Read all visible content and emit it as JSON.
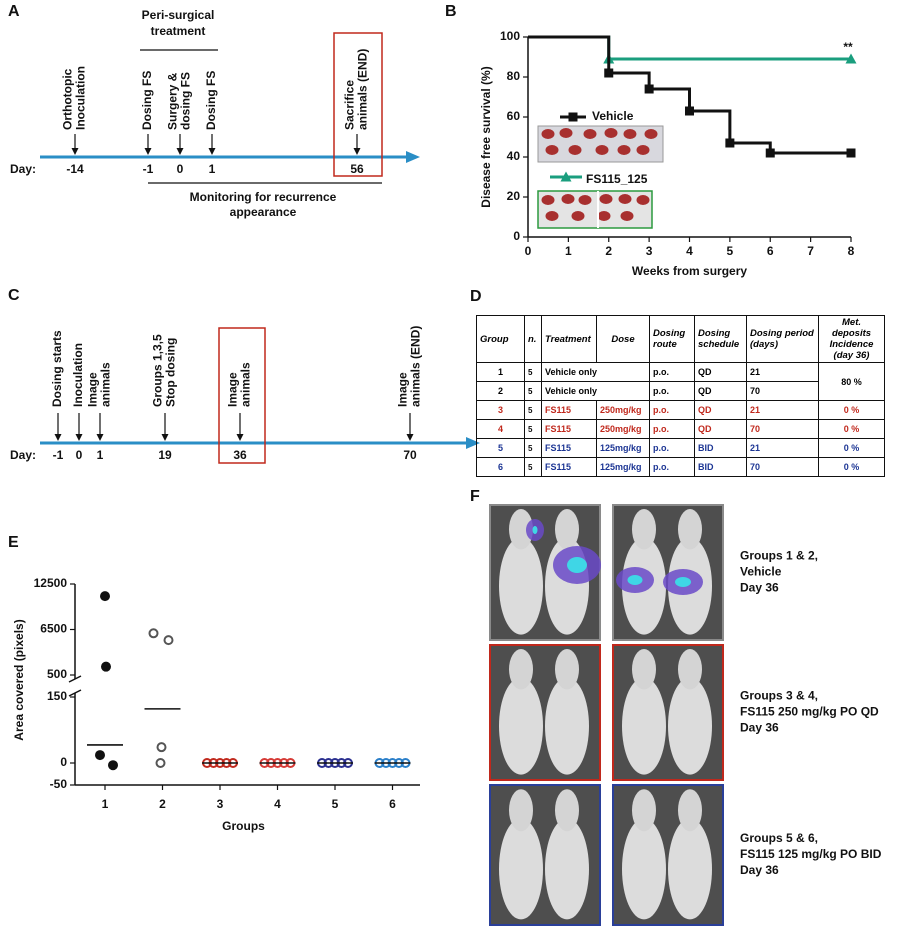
{
  "panel_a": {
    "label": "A",
    "header": [
      "Peri-surgical",
      "treatment"
    ],
    "day_label": "Day:",
    "events": [
      {
        "label": [
          "Orthotopic",
          "Inoculation"
        ],
        "day": "-14"
      },
      {
        "label": [
          "Dosing FS"
        ],
        "day": "-1"
      },
      {
        "label": [
          "Surgery &",
          "dosing FS"
        ],
        "day": "0"
      },
      {
        "label": [
          "Dosing FS"
        ],
        "day": "1"
      },
      {
        "label": [
          "Sacrifice",
          "animals (END)"
        ],
        "day": "56"
      }
    ],
    "footer": [
      "Monitoring for recurrence",
      "appearance"
    ]
  },
  "panel_c": {
    "label": "C",
    "day_label": "Day:",
    "events": [
      {
        "label": [
          "Dosing starts"
        ],
        "day": "-1"
      },
      {
        "label": [
          "Inoculation"
        ],
        "day": "0"
      },
      {
        "label": [
          "Image",
          "animals"
        ],
        "day": "1"
      },
      {
        "label": [
          "Groups 1,3,5",
          "Stop dosing"
        ],
        "day": "19"
      },
      {
        "label": [
          "Image",
          "animals"
        ],
        "day": "36"
      },
      {
        "label": [
          "Image",
          "animals (END)"
        ],
        "day": "70"
      }
    ]
  },
  "chart_data": [
    {
      "label": "B",
      "type": "line",
      "step": true,
      "x_label": "Weeks from surgery",
      "y_label": "Disease free survival (%)",
      "xlim": [
        0,
        8
      ],
      "xticks": [
        0,
        1,
        2,
        3,
        4,
        5,
        6,
        7,
        8
      ],
      "ylim": [
        0,
        100
      ],
      "yticks": [
        0,
        20,
        40,
        60,
        80,
        100
      ],
      "annotations": [
        "**"
      ],
      "series": [
        {
          "name": "Vehicle",
          "color": "#111111",
          "marker": "square",
          "x": [
            0,
            2,
            3,
            4,
            5,
            6,
            8
          ],
          "values": [
            100,
            82,
            74,
            63,
            47,
            42,
            42
          ]
        },
        {
          "name": "FS115_125",
          "color": "#1a9e7e",
          "marker": "triangle",
          "x": [
            0,
            2,
            8
          ],
          "values": [
            100,
            89,
            89
          ]
        }
      ]
    },
    {
      "label": "E",
      "type": "scatter",
      "x_label": "Groups",
      "y_label": "Area covered (pixels)",
      "categories": [
        "1",
        "2",
        "3",
        "4",
        "5",
        "6"
      ],
      "ylim": [
        -50,
        12500
      ],
      "axis_break": [
        150,
        500
      ],
      "yticks": [
        -50,
        0,
        150,
        500,
        6500,
        12500
      ],
      "series": [
        {
          "color": "#111111",
          "filled": true,
          "values": [
            10900,
            1600,
            18,
            -5
          ],
          "median": 41
        },
        {
          "color": "#555555",
          "filled": false,
          "values": [
            6000,
            5100,
            36,
            0
          ],
          "median": 123
        },
        {
          "color": "#c0281c",
          "filled": false,
          "values": [
            0,
            0,
            0,
            0,
            0
          ],
          "median": 0
        },
        {
          "color": "#d63a35",
          "filled": false,
          "values": [
            0,
            0,
            0,
            0,
            0
          ],
          "median": 0
        },
        {
          "color": "#2a2f8f",
          "filled": false,
          "values": [
            0,
            0,
            0,
            0,
            0
          ],
          "median": 0
        },
        {
          "color": "#2a7fc9",
          "filled": false,
          "values": [
            0,
            0,
            0,
            0,
            0
          ],
          "median": 0
        }
      ]
    }
  ],
  "table": {
    "label": "D",
    "header": [
      "Group",
      "n.",
      "Treatment",
      "Dose",
      "Dosing route",
      "Dosing schedule",
      "Dosing period (days)",
      "Met. deposits Incidence (day 36)"
    ],
    "rows": [
      [
        "1",
        "5",
        "Vehicle only",
        "p.o.",
        "QD",
        "21",
        "80 %"
      ],
      [
        "2",
        "5",
        "Vehicle only",
        "p.o.",
        "QD",
        "70"
      ],
      [
        "3",
        "5",
        "FS115",
        "250mg/kg",
        "p.o.",
        "QD",
        "21",
        "0 %"
      ],
      [
        "4",
        "5",
        "FS115",
        "250mg/kg",
        "p.o.",
        "QD",
        "70",
        "0 %"
      ],
      [
        "5",
        "5",
        "FS115",
        "125mg/kg",
        "p.o.",
        "BID",
        "21",
        "0 %"
      ],
      [
        "6",
        "5",
        "FS115",
        "125mg/kg",
        "p.o.",
        "BID",
        "70",
        "0 %"
      ]
    ]
  },
  "panel_f": {
    "label": "F",
    "captions": [
      [
        "Groups 1 & 2,",
        "Vehicle",
        "Day 36"
      ],
      [
        "Groups 3 & 4,",
        "FS115 250 mg/kg PO QD",
        "Day 36"
      ],
      [
        "Groups 5 & 6,",
        "FS115 125 mg/kg  PO BID",
        "Day 36"
      ]
    ]
  }
}
